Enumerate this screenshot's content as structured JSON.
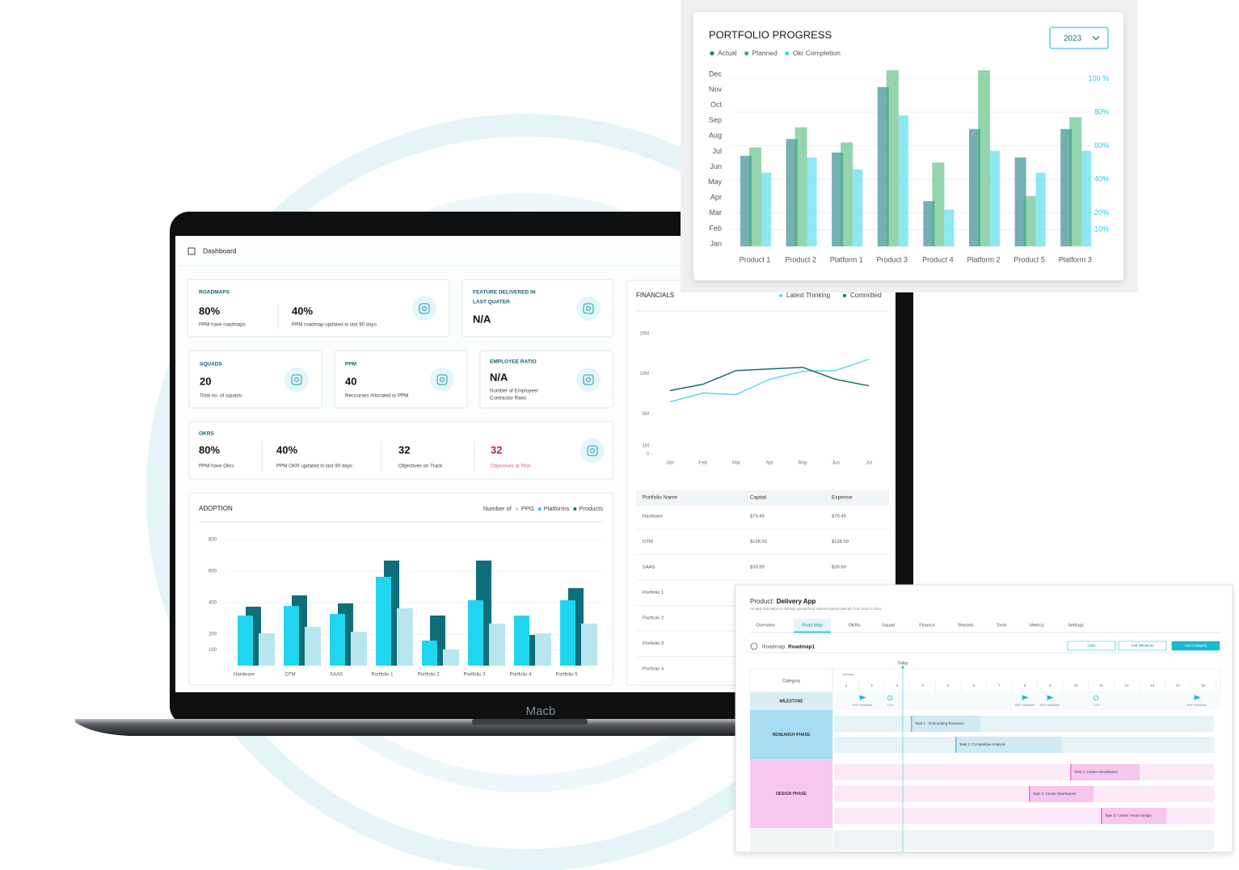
{
  "laptop": {
    "brand": "Macb"
  },
  "dashboard": {
    "title": "Dashboard",
    "roadmaps": {
      "label": "ROADMAPS",
      "items": [
        {
          "value": "80%",
          "caption": "PPM have roadmaps"
        },
        {
          "value": "40%",
          "caption": "PPM roadmap updated in last 90 days"
        }
      ]
    },
    "feature": {
      "label": [
        "FEATURE DELIVERED IN",
        "LAST QUATER"
      ],
      "value": "N/A"
    },
    "squads": {
      "label": "SQUADS",
      "value": "20",
      "caption": "Total no. of squads"
    },
    "ppm": {
      "label": "PPM",
      "value": "40",
      "caption": "Recourses Allocated to PPM"
    },
    "employee_ratio": {
      "label": "EMPLOYEE RATIO",
      "value": "N/A",
      "caption": [
        "Number of Employee/",
        "Contractor Ratio"
      ]
    },
    "okrs": {
      "label": "OKRS",
      "items": [
        {
          "value": "80%",
          "caption": "PPM have Okrs"
        },
        {
          "value": "40%",
          "caption": "PPM OKR updated in last 90 days"
        },
        {
          "value": "32",
          "caption": "Objectives on Track"
        },
        {
          "value": "32",
          "caption": "Objectives at Risk"
        }
      ]
    }
  },
  "financials_table": {
    "columns": [
      "Portfolio Name",
      "Capital",
      "Expense"
    ],
    "rows": [
      [
        "Hardware",
        "$79.49",
        "$79.49"
      ],
      [
        "OTM",
        "$128.50",
        "$128.50"
      ],
      [
        "SAAS",
        "$39.99",
        "$39.99"
      ],
      [
        "Portfolio 1"
      ],
      [
        "Portfolio 2"
      ],
      [
        "Portfolio 3"
      ],
      [
        "Portfolio 4"
      ]
    ]
  },
  "roadmap": {
    "product_label": "Product:",
    "product": "Delivery App",
    "description": "An app that helps to delivery goods/food orders/urgents parcels from door to door.",
    "tabs": [
      "Overview",
      "Road Map",
      "OKRs",
      "Squad",
      "Finance",
      "Reports",
      "Tools",
      "Metrics",
      "Settings"
    ],
    "active_tab": 1,
    "roadmap_label": "Roadmap:",
    "roadmap_name": "Roadmap1",
    "buttons": [
      "Daily",
      "Add Milestone",
      "Add Category"
    ],
    "category_header": "Category",
    "month": "January",
    "today": "Today",
    "days": [
      1,
      2,
      3,
      4,
      5,
      6,
      7,
      8,
      9,
      10,
      11,
      12,
      13,
      14,
      15
    ],
    "milestone_row": "MILESTONE",
    "milestones": [
      {
        "label": "MVP candidate",
        "kind": "flag"
      },
      {
        "label": "1.5.6",
        "kind": "gear"
      },
      {
        "label": "MVP candidate",
        "kind": "flag"
      },
      {
        "label": "MVP candidate",
        "kind": "flag"
      },
      {
        "label": "1.5.6",
        "kind": "gear"
      },
      {
        "label": "MVP candidate",
        "kind": "flag"
      }
    ],
    "phases": [
      {
        "name": "RESEARCH PHASE",
        "tasks": [
          "Task 1 : Onboarding Research",
          "Task 2: Competitive Analysis"
        ]
      },
      {
        "name": "DESIGN PHASE",
        "tasks": [
          "Task 1: Create MoodBoard",
          "Task 2: Create Wireframes",
          "Task 3: Create Visual Design"
        ]
      }
    ]
  },
  "chart_data": [
    {
      "type": "bar",
      "title": "PORTFOLIO PROGRESS",
      "dropdown": "2023",
      "categories": [
        "Product 1",
        "Product 2",
        "Platform 1",
        "Product 3",
        "Product 4",
        "Platform 2",
        "Product 5",
        "Platform 3"
      ],
      "series": [
        {
          "name": "Actual",
          "color": "#1f7f86",
          "axis": "y2",
          "values": [
            54,
            64,
            56,
            95,
            27,
            70,
            53,
            70
          ]
        },
        {
          "name": "Planned",
          "color": "#3cb36b",
          "axis": "y2",
          "values": [
            59,
            71,
            62,
            105,
            50,
            105,
            30,
            77
          ]
        },
        {
          "name": "Okr Completion",
          "color": "#3fd8ea",
          "axis": "y2",
          "values": [
            44,
            53,
            46,
            78,
            22,
            57,
            44,
            57
          ]
        }
      ],
      "y_labels": [
        "Jan",
        "Feb",
        "Mar",
        "Apr",
        "May",
        "Jun",
        "Jul",
        "Aug",
        "Sep",
        "Oct",
        "Nov",
        "Dec"
      ],
      "y2lim": [
        0,
        105
      ],
      "y2ticks": [
        {
          "value": 10,
          "label": "10%"
        },
        {
          "value": 20,
          "label": "20%"
        },
        {
          "value": 40,
          "label": "40%"
        },
        {
          "value": 60,
          "label": "60%"
        },
        {
          "value": 80,
          "label": "80%"
        },
        {
          "value": 100,
          "label": "100 %"
        }
      ],
      "grid": true
    },
    {
      "type": "line",
      "title": "FINANCIALS",
      "categories": [
        "Jan",
        "Feb",
        "Mar",
        "Apr",
        "May",
        "Jun",
        "Jul"
      ],
      "series": [
        {
          "name": "Latest Thinking",
          "color": "#5ad8ea",
          "values": [
            6500000,
            7600000,
            7400000,
            9300000,
            10300000,
            10400000,
            11800000
          ]
        },
        {
          "name": "Committed",
          "color": "#1a6b74",
          "values": [
            7900000,
            8700000,
            10400000,
            10600000,
            10800000,
            9300000,
            8500000
          ]
        }
      ],
      "ylim": [
        0,
        15000000
      ],
      "yticks": [
        0,
        {
          "value": 1000000,
          "label": "1M"
        },
        {
          "value": 5000000,
          "label": "5M"
        },
        {
          "value": 10000000,
          "label": "10M"
        },
        {
          "value": 15000000,
          "label": "15M"
        }
      ],
      "grid": false
    },
    {
      "type": "bar",
      "title": "ADOPTION",
      "legend_title": "Number of",
      "categories": [
        "Hardware",
        "OTM",
        "SAAS",
        "Portfolio 1",
        "Portfolio 2",
        "Portfolio 3",
        "Portfolio 4",
        "Portfolio 5"
      ],
      "series": [
        {
          "name": "PPG",
          "color": "#b8e6ee",
          "values": [
            205,
            246,
            215,
            364,
            103,
            267,
            205,
            267
          ]
        },
        {
          "name": "Platforms",
          "color": "#1fd6ee",
          "values": [
            318,
            379,
            328,
            564,
            159,
            415,
            318,
            415
          ]
        },
        {
          "name": "Products",
          "color": "#0f6e7a",
          "values": [
            374,
            446,
            395,
            667,
            318,
            667,
            195,
            492
          ]
        }
      ],
      "ylim": [
        0,
        800
      ],
      "yticks": [
        100,
        200,
        400,
        600,
        800
      ],
      "grid": true
    }
  ]
}
